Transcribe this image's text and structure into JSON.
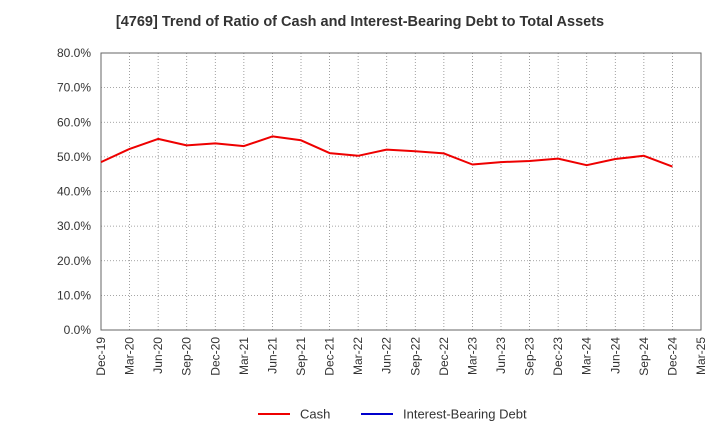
{
  "chart_data": {
    "type": "line",
    "title": "[4769]  Trend of Ratio of Cash and Interest-Bearing Debt to Total Assets",
    "xlabel": "",
    "ylabel": "",
    "categories": [
      "Dec-19",
      "Mar-20",
      "Jun-20",
      "Sep-20",
      "Dec-20",
      "Mar-21",
      "Jun-21",
      "Sep-21",
      "Dec-21",
      "Mar-22",
      "Jun-22",
      "Sep-22",
      "Dec-22",
      "Mar-23",
      "Jun-23",
      "Sep-23",
      "Dec-23",
      "Mar-24",
      "Jun-24",
      "Sep-24",
      "Dec-24",
      "Mar-25"
    ],
    "y_ticks": [
      "0.0%",
      "10.0%",
      "20.0%",
      "30.0%",
      "40.0%",
      "50.0%",
      "60.0%",
      "70.0%",
      "80.0%"
    ],
    "ylim": [
      0,
      80
    ],
    "grid": true,
    "legend_position": "bottom",
    "series": [
      {
        "name": "Cash",
        "color": "#ee0000",
        "values": [
          48.5,
          52.3,
          55.2,
          53.3,
          53.9,
          53.1,
          55.9,
          54.8,
          51.1,
          50.3,
          52.1,
          51.6,
          51.0,
          47.8,
          48.5,
          48.8,
          49.5,
          47.6,
          49.4,
          50.3,
          47.2,
          null
        ]
      },
      {
        "name": "Interest-Bearing Debt",
        "color": "#0000cc",
        "values": [
          null,
          null,
          null,
          null,
          null,
          null,
          null,
          null,
          null,
          null,
          null,
          null,
          null,
          null,
          null,
          null,
          null,
          null,
          null,
          null,
          null,
          null
        ]
      }
    ]
  }
}
